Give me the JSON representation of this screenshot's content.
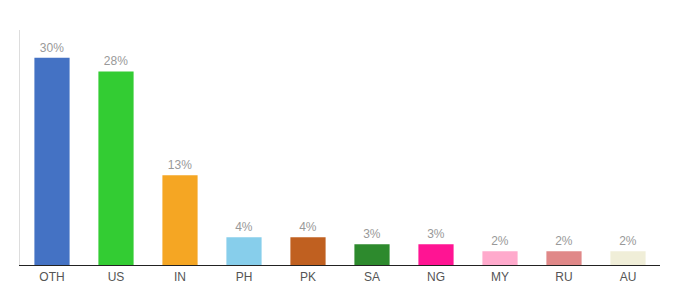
{
  "chart_data": {
    "type": "bar",
    "categories": [
      "OTH",
      "US",
      "IN",
      "PH",
      "PK",
      "SA",
      "NG",
      "MY",
      "RU",
      "AU"
    ],
    "values": [
      30,
      28,
      13,
      4,
      4,
      3,
      3,
      2,
      2,
      2
    ],
    "value_labels": [
      "30%",
      "28%",
      "13%",
      "4%",
      "4%",
      "3%",
      "3%",
      "2%",
      "2%",
      "2%"
    ],
    "colors": [
      "#4472c4",
      "#33cc33",
      "#f5a623",
      "#87ceeb",
      "#c06020",
      "#2d8a2d",
      "#ff1493",
      "#ffaacc",
      "#e08888",
      "#f0eed8"
    ],
    "ylim": [
      0,
      34
    ],
    "grid": false,
    "data_labels": true,
    "tick_labels": "x"
  }
}
